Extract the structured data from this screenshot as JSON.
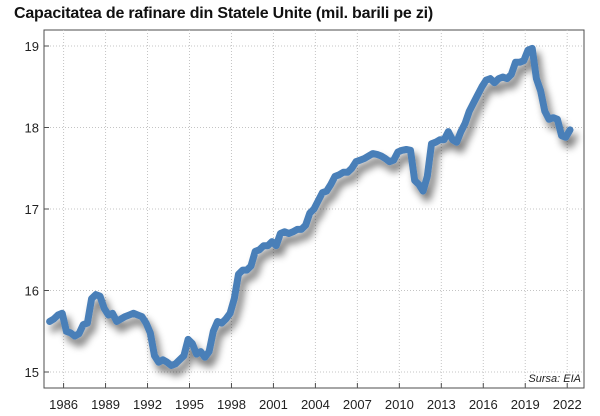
{
  "chart_data": {
    "type": "line",
    "title": "Capacitatea de rafinare din Statele Unite (mil. barili pe zi)",
    "source": "Sursa: EIA",
    "ylim": [
      15,
      19
    ],
    "xlim": [
      1984.6,
      2023.2
    ],
    "yticks": [
      15,
      16,
      17,
      18,
      19
    ],
    "ytick_labels": [
      "15",
      "16",
      "17",
      "18",
      "19"
    ],
    "xticks": [
      1986,
      1989,
      1992,
      1995,
      1998,
      2001,
      2004,
      2007,
      2010,
      2013,
      2016,
      2019,
      2022
    ],
    "xtick_labels": [
      "1986",
      "1989",
      "1992",
      "1995",
      "1998",
      "2001",
      "2004",
      "2007",
      "2010",
      "2013",
      "2016",
      "2019",
      "2022"
    ],
    "grid": true,
    "color": "#4a7fb8",
    "series": [
      {
        "x": [
          1985.0,
          1985.3,
          1985.6,
          1985.9,
          1986.2,
          1986.5,
          1986.8,
          1987.1,
          1987.4,
          1987.7,
          1988.0,
          1988.3,
          1988.6,
          1988.9,
          1989.2,
          1989.5,
          1989.8,
          1990.1,
          1990.4,
          1990.7,
          1991.0,
          1991.3,
          1991.6,
          1991.9,
          1992.2,
          1992.5,
          1992.8,
          1993.1,
          1993.4,
          1993.7,
          1994.0,
          1994.3,
          1994.6,
          1994.9,
          1995.2,
          1995.5,
          1995.8,
          1996.1,
          1996.4,
          1996.7,
          1997.0,
          1997.3,
          1997.6,
          1997.9,
          1998.2,
          1998.5,
          1998.8,
          1999.1,
          1999.4,
          1999.7,
          2000.0,
          2000.3,
          2000.6,
          2000.9,
          2001.2,
          2001.5,
          2001.8,
          2002.1,
          2002.4,
          2002.7,
          2003.0,
          2003.3,
          2003.6,
          2003.9,
          2004.2,
          2004.5,
          2004.8,
          2005.1,
          2005.4,
          2005.7,
          2006.0,
          2006.3,
          2006.6,
          2006.9,
          2007.2,
          2007.5,
          2007.8,
          2008.1,
          2008.4,
          2008.7,
          2009.0,
          2009.3,
          2009.6,
          2009.9,
          2010.2,
          2010.5,
          2010.8,
          2011.1,
          2011.4,
          2011.7,
          2012.0,
          2012.3,
          2012.6,
          2012.9,
          2013.2,
          2013.5,
          2013.8,
          2014.1,
          2014.4,
          2014.7,
          2015.0,
          2015.3,
          2015.6,
          2015.9,
          2016.2,
          2016.5,
          2016.8,
          2017.1,
          2017.4,
          2017.7,
          2018.0,
          2018.3,
          2018.6,
          2018.9,
          2019.2,
          2019.5,
          2019.8,
          2020.1,
          2020.4,
          2020.7,
          2021.0,
          2021.3,
          2021.6,
          2021.9,
          2022.2
        ],
        "y": [
          15.62,
          15.65,
          15.7,
          15.72,
          15.5,
          15.48,
          15.44,
          15.47,
          15.58,
          15.6,
          15.9,
          15.95,
          15.93,
          15.78,
          15.7,
          15.72,
          15.62,
          15.65,
          15.68,
          15.7,
          15.72,
          15.7,
          15.68,
          15.6,
          15.48,
          15.2,
          15.12,
          15.15,
          15.12,
          15.08,
          15.1,
          15.15,
          15.2,
          15.4,
          15.35,
          15.22,
          15.25,
          15.18,
          15.25,
          15.5,
          15.62,
          15.6,
          15.65,
          15.72,
          15.9,
          16.2,
          16.25,
          16.25,
          16.3,
          16.48,
          16.5,
          16.55,
          16.55,
          16.6,
          16.55,
          16.7,
          16.72,
          16.7,
          16.72,
          16.75,
          16.75,
          16.8,
          16.95,
          17.0,
          17.1,
          17.2,
          17.22,
          17.3,
          17.4,
          17.42,
          17.45,
          17.45,
          17.5,
          17.58,
          17.6,
          17.62,
          17.65,
          17.68,
          17.67,
          17.65,
          17.62,
          17.58,
          17.6,
          17.7,
          17.72,
          17.73,
          17.72,
          17.35,
          17.3,
          17.22,
          17.4,
          17.8,
          17.82,
          17.85,
          17.85,
          17.95,
          17.85,
          17.82,
          17.95,
          18.05,
          18.2,
          18.3,
          18.4,
          18.5,
          18.58,
          18.6,
          18.55,
          18.6,
          18.62,
          18.6,
          18.65,
          18.8,
          18.8,
          18.82,
          18.95,
          18.97,
          18.6,
          18.45,
          18.2,
          18.1,
          18.12,
          18.1,
          17.9,
          17.88,
          17.97
        ]
      }
    ]
  }
}
